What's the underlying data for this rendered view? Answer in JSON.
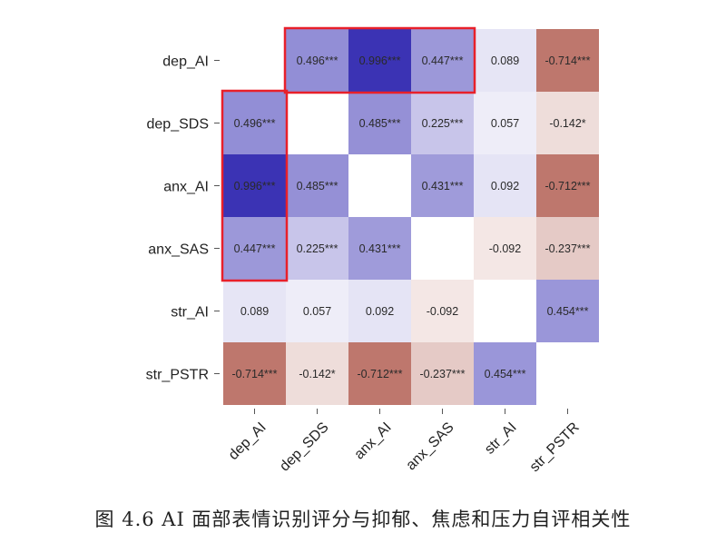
{
  "chart_data": {
    "type": "heatmap",
    "title": "",
    "xlabel": "",
    "ylabel": "",
    "labels": [
      "dep_AI",
      "dep_SDS",
      "anx_AI",
      "anx_SAS",
      "str_AI",
      "str_PSTR"
    ],
    "matrix": [
      [
        null,
        0.496,
        0.996,
        0.447,
        0.089,
        -0.714
      ],
      [
        0.496,
        null,
        0.485,
        0.225,
        0.057,
        -0.142
      ],
      [
        0.996,
        0.485,
        null,
        0.431,
        0.092,
        -0.712
      ],
      [
        0.447,
        0.225,
        0.431,
        null,
        -0.092,
        -0.237
      ],
      [
        0.089,
        0.057,
        0.092,
        -0.092,
        null,
        0.454
      ],
      [
        -0.714,
        -0.142,
        -0.712,
        -0.237,
        0.454,
        null
      ]
    ],
    "cell_text": [
      [
        "",
        "0.496***",
        "0.996***",
        "0.447***",
        "0.089",
        "-0.714***"
      ],
      [
        "0.496***",
        "",
        "0.485***",
        "0.225***",
        "0.057",
        "-0.142*"
      ],
      [
        "0.996***",
        "0.485***",
        "",
        "0.431***",
        "0.092",
        "-0.712***"
      ],
      [
        "0.447***",
        "0.225***",
        "0.431***",
        "",
        "-0.092",
        "-0.237***"
      ],
      [
        "0.089",
        "0.057",
        "0.092",
        "-0.092",
        "",
        "0.454***"
      ],
      [
        "-0.714***",
        "-0.142*",
        "-0.712***",
        "-0.237***",
        "0.454***",
        ""
      ]
    ],
    "highlights": [
      {
        "rows": [
          0,
          0
        ],
        "cols": [
          1,
          3
        ]
      },
      {
        "rows": [
          1,
          3
        ],
        "cols": [
          0,
          0
        ]
      }
    ],
    "colors": {
      "positive": "#3a32b4",
      "negative": "#a84a3c",
      "neutral": "#ffffff",
      "highlight": "#e8202a",
      "text": "#2a2a2a"
    }
  },
  "caption": "图 4.6 AI 面部表情识别评分与抑郁、焦虑和压力自评相关性"
}
